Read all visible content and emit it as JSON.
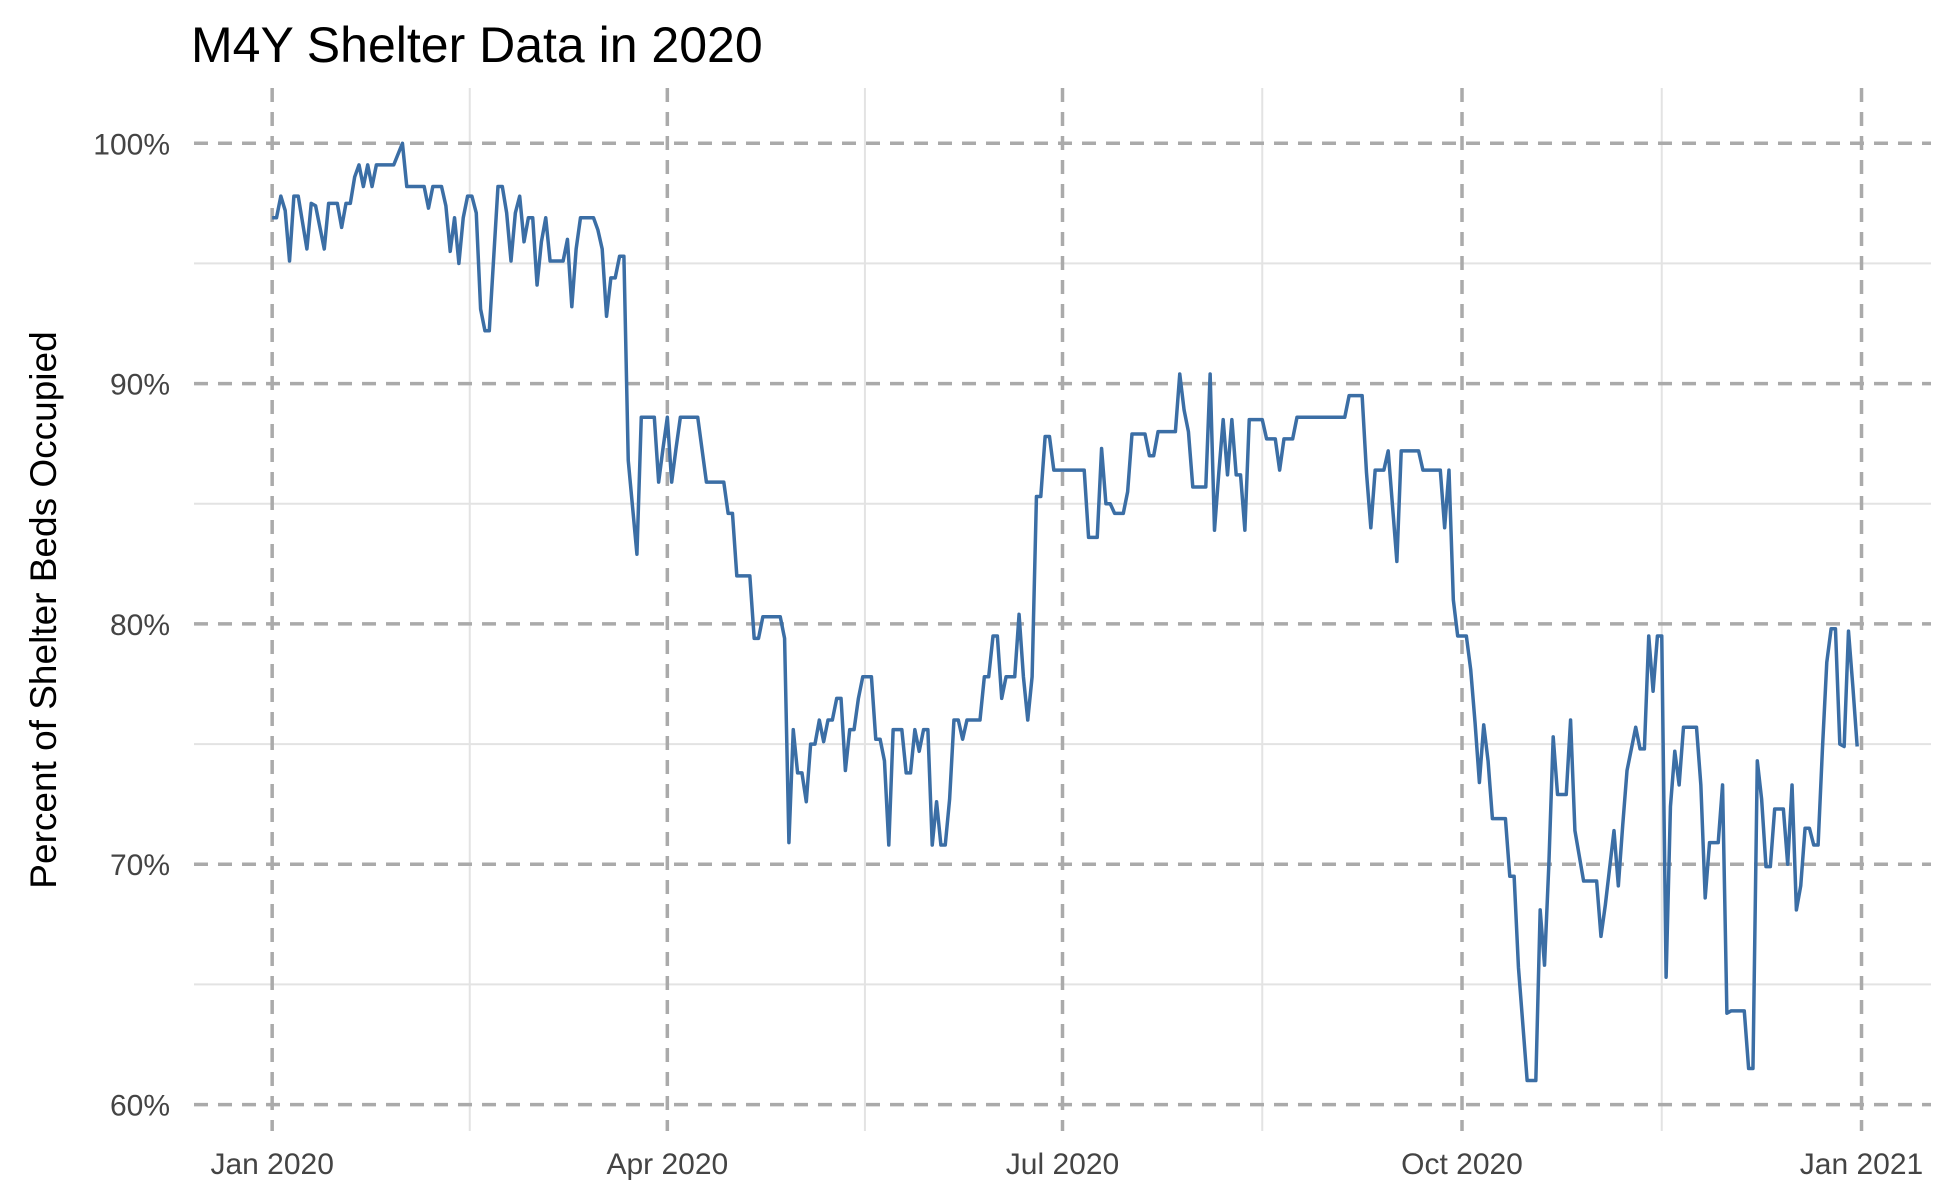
{
  "chart_data": {
    "type": "line",
    "title": "M4Y Shelter Data in 2020",
    "y_label": "Percent of Shelter Beds Occupied",
    "color": "#3b6ea5",
    "grid": true,
    "xlim": [
      -18,
      382
    ],
    "ylim": [
      58.9,
      102.3
    ],
    "xticks": [
      {
        "value": 0,
        "label": "Jan 2020"
      },
      {
        "value": 91,
        "label": "Apr 2020"
      },
      {
        "value": 182,
        "label": "Jul 2020"
      },
      {
        "value": 274,
        "label": "Oct 2020"
      },
      {
        "value": 366,
        "label": "Jan 2021"
      }
    ],
    "yticks": [
      {
        "value": 60,
        "label": "60%"
      },
      {
        "value": 70,
        "label": "70%"
      },
      {
        "value": 80,
        "label": "80%"
      },
      {
        "value": 90,
        "label": "90%"
      },
      {
        "value": 100,
        "label": "100%"
      }
    ],
    "x": [
      0,
      1,
      2,
      3,
      4,
      5,
      6,
      8,
      9,
      10,
      12,
      13,
      15,
      16,
      17,
      18,
      19,
      20,
      21,
      22,
      23,
      24,
      28,
      30,
      31,
      35,
      36,
      37,
      39,
      40,
      41,
      42,
      43,
      44,
      45,
      46,
      47,
      48,
      49,
      50,
      52,
      53,
      54,
      55,
      56,
      57,
      58,
      59,
      60,
      61,
      62,
      63,
      64,
      67,
      68,
      69,
      70,
      71,
      74,
      75,
      76,
      77,
      78,
      79,
      80,
      81,
      82,
      84,
      85,
      88,
      89,
      90,
      91,
      92,
      93,
      94,
      98,
      100,
      104,
      105,
      106,
      107,
      110,
      111,
      112,
      113,
      117,
      118,
      119,
      120,
      121,
      122,
      123,
      124,
      125,
      126,
      127,
      128,
      129,
      130,
      131,
      132,
      133,
      134,
      135,
      136,
      138,
      139,
      140,
      141,
      142,
      143,
      145,
      146,
      147,
      148,
      149,
      150,
      151,
      152,
      153,
      154,
      155,
      156,
      157,
      158,
      159,
      160,
      163,
      164,
      165,
      166,
      167,
      168,
      169,
      171,
      172,
      173,
      174,
      175,
      176,
      177,
      178,
      179,
      180,
      181,
      187,
      188,
      190,
      191,
      192,
      193,
      194,
      196,
      197,
      198,
      201,
      202,
      203,
      204,
      208,
      209,
      210,
      211,
      212,
      215,
      216,
      217,
      218,
      219,
      220,
      221,
      222,
      223,
      224,
      225,
      228,
      229,
      231,
      232,
      233,
      235,
      236,
      247,
      248,
      251,
      252,
      253,
      254,
      256,
      257,
      258,
      259,
      260,
      264,
      265,
      269,
      270,
      271,
      272,
      273,
      275,
      276,
      277,
      278,
      279,
      280,
      281,
      284,
      285,
      286,
      287,
      289,
      291,
      292,
      293,
      294,
      295,
      296,
      298,
      299,
      300,
      302,
      305,
      306,
      307,
      309,
      310,
      311,
      312,
      313,
      314,
      315,
      316,
      317,
      318,
      319,
      320,
      321,
      322,
      323,
      324,
      325,
      328,
      329,
      330,
      331,
      333,
      334,
      335,
      336,
      339,
      340,
      341,
      342,
      343,
      344,
      345,
      346,
      348,
      349,
      350,
      351,
      352,
      353,
      354,
      355,
      356,
      357,
      358,
      359,
      360,
      361,
      362,
      363,
      364,
      365
    ],
    "values": [
      96.9,
      96.9,
      97.8,
      97.2,
      95.1,
      97.8,
      97.8,
      95.6,
      97.5,
      97.4,
      95.6,
      97.5,
      97.5,
      96.5,
      97.5,
      97.5,
      98.6,
      99.1,
      98.2,
      99.1,
      98.2,
      99.1,
      99.1,
      100,
      98.2,
      98.2,
      97.3,
      98.2,
      98.2,
      97.4,
      95.5,
      96.9,
      95,
      96.9,
      97.8,
      97.8,
      97.1,
      93.1,
      92.2,
      92.2,
      98.2,
      98.2,
      97.1,
      95.1,
      97.1,
      97.8,
      95.9,
      96.9,
      96.9,
      94.1,
      95.9,
      96.9,
      95.1,
      95.1,
      96,
      93.2,
      95.6,
      96.9,
      96.9,
      96.4,
      95.6,
      92.8,
      94.4,
      94.4,
      95.3,
      95.3,
      86.8,
      82.9,
      88.6,
      88.6,
      85.9,
      87.3,
      88.6,
      85.9,
      87.3,
      88.6,
      88.6,
      85.9,
      85.9,
      84.6,
      84.6,
      82,
      82,
      79.4,
      79.4,
      80.3,
      80.3,
      79.4,
      70.9,
      75.6,
      73.8,
      73.8,
      72.6,
      75,
      75,
      76,
      75.1,
      76,
      76,
      76.9,
      76.9,
      73.9,
      75.6,
      75.6,
      76.9,
      77.8,
      77.8,
      75.2,
      75.2,
      74.3,
      70.8,
      75.6,
      75.6,
      73.8,
      73.8,
      75.6,
      74.7,
      75.6,
      75.6,
      70.8,
      72.6,
      70.8,
      70.8,
      72.7,
      76,
      76,
      75.2,
      76,
      76,
      77.8,
      77.8,
      79.5,
      79.5,
      76.9,
      77.8,
      77.8,
      80.4,
      77.8,
      76,
      77.8,
      85.3,
      85.3,
      87.8,
      87.8,
      86.4,
      86.4,
      86.4,
      83.6,
      83.6,
      87.3,
      85,
      85,
      84.6,
      84.6,
      85.5,
      87.9,
      87.9,
      87,
      87,
      88,
      88,
      90.4,
      88.9,
      88,
      85.7,
      85.7,
      90.4,
      83.9,
      86.3,
      88.5,
      86.2,
      88.5,
      86.2,
      86.2,
      83.9,
      88.5,
      88.5,
      87.7,
      87.7,
      86.4,
      87.7,
      87.7,
      88.6,
      88.6,
      89.5,
      89.5,
      86.3,
      84,
      86.4,
      86.4,
      87.2,
      84.9,
      82.6,
      87.2,
      87.2,
      86.4,
      86.4,
      84,
      86.4,
      81,
      79.5,
      79.5,
      78.1,
      75.9,
      73.4,
      75.8,
      74.3,
      71.9,
      71.9,
      69.5,
      69.5,
      65.7,
      61,
      61,
      68.1,
      65.8,
      70,
      75.3,
      72.9,
      72.9,
      76,
      71.4,
      69.3,
      69.3,
      67,
      68.3,
      71.4,
      69.1,
      71.6,
      73.9,
      74.8,
      75.7,
      74.8,
      74.8,
      79.5,
      77.2,
      79.5,
      79.5,
      65.3,
      72.4,
      74.7,
      73.3,
      75.7,
      75.7,
      73.3,
      68.6,
      70.9,
      70.9,
      73.3,
      63.8,
      63.9,
      63.9,
      61.5,
      61.5,
      74.3,
      72.7,
      69.9,
      69.9,
      72.3,
      72.3,
      70,
      73.3,
      68.1,
      69.1,
      71.5,
      71.5,
      70.8,
      70.8,
      74.8,
      78.4,
      79.8,
      79.8,
      75,
      74.9,
      79.7,
      77.4,
      74.9
    ]
  }
}
